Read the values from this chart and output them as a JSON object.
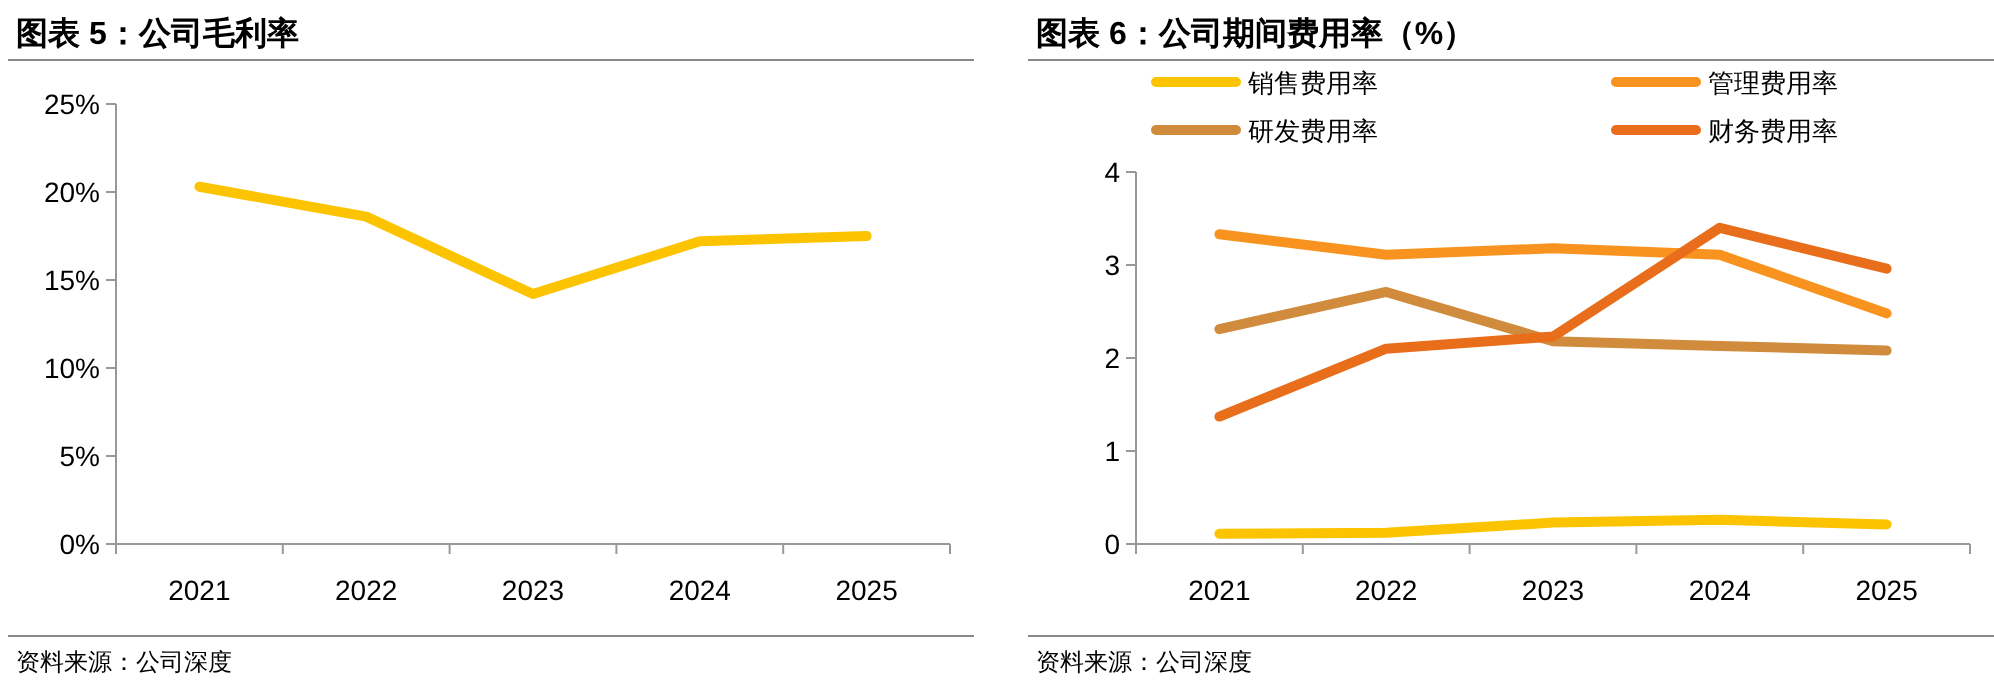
{
  "chart_data": [
    {
      "type": "line",
      "title": "图表 5：公司毛利率",
      "categories": [
        "2021",
        "2022",
        "2023",
        "2024",
        "2025"
      ],
      "values": [
        20.3,
        18.6,
        14.2,
        17.2,
        17.5
      ],
      "color": "#fcc400",
      "ylim": [
        0,
        25
      ],
      "yticks": [
        {
          "value": 0,
          "label": "0%"
        },
        {
          "value": 5,
          "label": "5%"
        },
        {
          "value": 10,
          "label": "10%"
        },
        {
          "value": 15,
          "label": "15%"
        },
        {
          "value": 20,
          "label": "20%"
        },
        {
          "value": 25,
          "label": "25%"
        }
      ],
      "annotations": [
        "资料来源：公司深度"
      ]
    },
    {
      "type": "line",
      "title": "图表 6：公司期间费用率（%）",
      "categories": [
        "2021",
        "2022",
        "2023",
        "2024",
        "2025"
      ],
      "legend": "top",
      "series": [
        {
          "name": "销售费用率",
          "color": "#fcc400",
          "values": [
            0.11,
            0.12,
            0.23,
            0.26,
            0.21
          ]
        },
        {
          "name": "管理费用率",
          "color": "#f7931e",
          "values": [
            3.33,
            3.11,
            3.18,
            3.11,
            2.48
          ]
        },
        {
          "name": "研发费用率",
          "color": "#d08c3c",
          "values": [
            2.31,
            2.71,
            2.18,
            2.13,
            2.08
          ]
        },
        {
          "name": "财务费用率",
          "color": "#e86e1c",
          "values": [
            1.37,
            2.1,
            2.23,
            3.4,
            2.96
          ]
        }
      ],
      "ylim": [
        0,
        4
      ],
      "yticks": [
        0,
        1,
        2,
        3,
        4
      ],
      "annotations": [
        "资料来源：公司深度"
      ]
    }
  ]
}
